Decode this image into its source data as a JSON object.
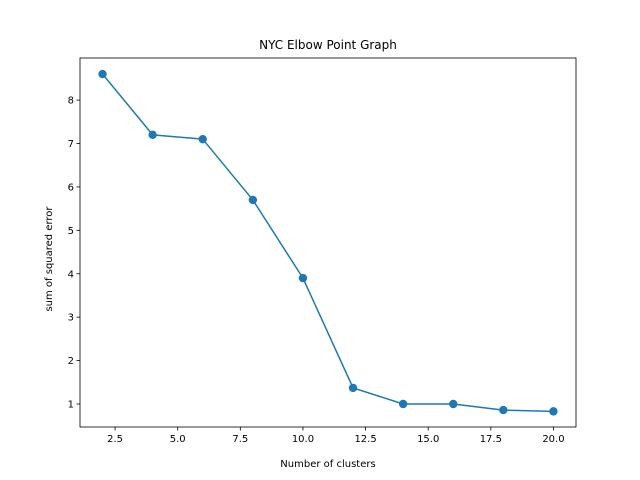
{
  "chart_data": {
    "type": "line",
    "title": "NYC Elbow Point Graph",
    "xlabel": "Number of clusters",
    "ylabel": "sum of squared error",
    "xlim": [
      1.1,
      20.9
    ],
    "ylim": [
      0.47,
      8.97
    ],
    "xticks": [
      2.5,
      5.0,
      7.5,
      10.0,
      12.5,
      15.0,
      17.5,
      20.0
    ],
    "xtick_labels": [
      "2.5",
      "5.0",
      "7.5",
      "10.0",
      "12.5",
      "15.0",
      "17.5",
      "20.0"
    ],
    "yticks": [
      1,
      2,
      3,
      4,
      5,
      6,
      7,
      8
    ],
    "ytick_labels": [
      "1",
      "2",
      "3",
      "4",
      "5",
      "6",
      "7",
      "8"
    ],
    "grid": false,
    "series": [
      {
        "color": "#1f77b4",
        "marker": "circle",
        "x": [
          2,
          4,
          6,
          8,
          10,
          12,
          14,
          16,
          18,
          20
        ],
        "y": [
          8.6,
          7.2,
          7.1,
          5.7,
          3.9,
          1.37,
          1.0,
          1.0,
          0.86,
          0.83
        ]
      }
    ]
  }
}
